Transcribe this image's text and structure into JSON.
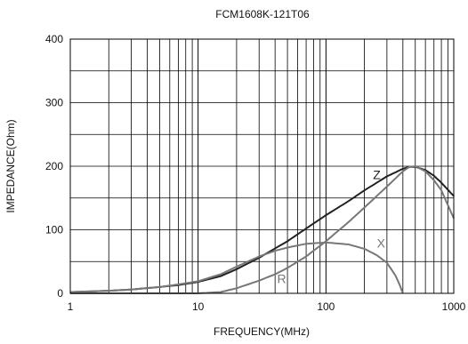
{
  "chart_data": {
    "type": "line",
    "title": "FCM1608K-121T06",
    "xlabel": "FREQUENCY(MHz)",
    "ylabel": "IMPEDANCE(Ohm)",
    "xscale": "log",
    "xlim": [
      1,
      1000
    ],
    "ylim": [
      0,
      400
    ],
    "x_ticks": [
      1,
      10,
      100,
      1000
    ],
    "x_tick_labels": [
      "1",
      "10",
      "100",
      "1000"
    ],
    "y_ticks": [
      0,
      100,
      200,
      300,
      400
    ],
    "y_tick_labels": [
      "0",
      "100",
      "200",
      "300",
      "400"
    ],
    "grid": true,
    "legend": "none",
    "series": [
      {
        "name": "Z",
        "color": "#222222",
        "label_at": [
          250,
          180
        ],
        "points": [
          [
            1,
            2
          ],
          [
            2,
            4
          ],
          [
            3,
            6
          ],
          [
            5,
            10
          ],
          [
            7,
            13
          ],
          [
            10,
            18
          ],
          [
            15,
            27
          ],
          [
            20,
            38
          ],
          [
            30,
            56
          ],
          [
            50,
            82
          ],
          [
            70,
            102
          ],
          [
            100,
            123
          ],
          [
            150,
            145
          ],
          [
            200,
            162
          ],
          [
            300,
            184
          ],
          [
            400,
            196
          ],
          [
            450,
            199
          ],
          [
            500,
            199
          ],
          [
            600,
            194
          ],
          [
            700,
            185
          ],
          [
            800,
            174
          ],
          [
            1000,
            153
          ]
        ]
      },
      {
        "name": "R",
        "color": "#777777",
        "label_at": [
          45,
          16
        ],
        "points": [
          [
            1,
            0
          ],
          [
            5,
            0
          ],
          [
            10,
            0
          ],
          [
            15,
            2
          ],
          [
            20,
            8
          ],
          [
            30,
            20
          ],
          [
            40,
            30
          ],
          [
            50,
            40
          ],
          [
            70,
            58
          ],
          [
            100,
            82
          ],
          [
            150,
            112
          ],
          [
            200,
            135
          ],
          [
            300,
            168
          ],
          [
            400,
            192
          ],
          [
            450,
            199
          ],
          [
            500,
            200
          ],
          [
            600,
            192
          ],
          [
            700,
            178
          ],
          [
            800,
            162
          ],
          [
            1000,
            118
          ]
        ]
      },
      {
        "name": "X",
        "color": "#777777",
        "label_at": [
          270,
          72
        ],
        "points": [
          [
            1,
            2
          ],
          [
            2,
            4
          ],
          [
            3,
            6
          ],
          [
            5,
            10
          ],
          [
            7,
            14
          ],
          [
            10,
            19
          ],
          [
            15,
            30
          ],
          [
            20,
            42
          ],
          [
            30,
            58
          ],
          [
            40,
            67
          ],
          [
            50,
            72
          ],
          [
            70,
            78
          ],
          [
            100,
            80
          ],
          [
            150,
            77
          ],
          [
            200,
            70
          ],
          [
            250,
            60
          ],
          [
            300,
            48
          ],
          [
            350,
            28
          ],
          [
            380,
            12
          ],
          [
            400,
            0
          ]
        ]
      }
    ]
  }
}
